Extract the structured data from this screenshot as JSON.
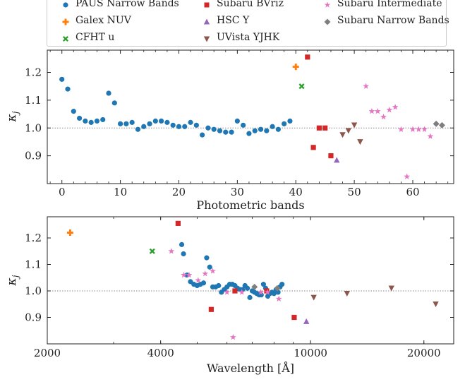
{
  "legend": [
    {
      "label": "PAUS Narrow Bands",
      "color": "#1f77b4",
      "marker": "circle"
    },
    {
      "label": "Subaru BVriz",
      "color": "#d62728",
      "marker": "square"
    },
    {
      "label": "Subaru Intermediate",
      "color": "#e377c2",
      "marker": "star"
    },
    {
      "label": "Galex NUV",
      "color": "#ff7f0e",
      "marker": "plus"
    },
    {
      "label": "HSC Y",
      "color": "#9467bd",
      "marker": "triangle-up"
    },
    {
      "label": "Subaru Narrow Bands",
      "color": "#7f7f7f",
      "marker": "diamond"
    },
    {
      "label": "CFHT u",
      "color": "#2ca02c",
      "marker": "x"
    },
    {
      "label": "UVista YJHK",
      "color": "#8c564b",
      "marker": "triangle-down"
    }
  ],
  "chart_data": [
    {
      "type": "scatter",
      "xlabel": "Photometric bands",
      "ylabel": "κ_j",
      "xlim": [
        -2.5,
        67
      ],
      "ylim": [
        0.8,
        1.28
      ],
      "xticks": [
        0,
        10,
        20,
        30,
        40,
        50,
        60
      ],
      "yticks": [
        0.9,
        1.0,
        1.1,
        1.2
      ],
      "reference_line": 1.0,
      "series": [
        {
          "name": "PAUS Narrow Bands",
          "points": [
            [
              0,
              1.175
            ],
            [
              1,
              1.14
            ],
            [
              2,
              1.06
            ],
            [
              3,
              1.035
            ],
            [
              4,
              1.025
            ],
            [
              5,
              1.02
            ],
            [
              6,
              1.025
            ],
            [
              7,
              1.03
            ],
            [
              8,
              1.125
            ],
            [
              9,
              1.09
            ],
            [
              10,
              1.015
            ],
            [
              11,
              1.015
            ],
            [
              12,
              1.02
            ],
            [
              13,
              0.995
            ],
            [
              14,
              1.005
            ],
            [
              15,
              1.015
            ],
            [
              16,
              1.025
            ],
            [
              17,
              1.025
            ],
            [
              18,
              1.02
            ],
            [
              19,
              1.01
            ],
            [
              20,
              1.005
            ],
            [
              21,
              1.005
            ],
            [
              22,
              1.02
            ],
            [
              23,
              1.01
            ],
            [
              24,
              0.975
            ],
            [
              25,
              1.0
            ],
            [
              26,
              0.995
            ],
            [
              27,
              0.99
            ],
            [
              28,
              0.985
            ],
            [
              29,
              0.985
            ],
            [
              30,
              1.025
            ],
            [
              31,
              1.01
            ],
            [
              32,
              0.98
            ],
            [
              33,
              0.99
            ],
            [
              34,
              0.995
            ],
            [
              35,
              0.99
            ],
            [
              36,
              1.005
            ],
            [
              37,
              0.995
            ],
            [
              38,
              1.015
            ],
            [
              39,
              1.025
            ]
          ]
        },
        {
          "name": "Galex NUV",
          "points": [
            [
              40,
              1.22
            ]
          ]
        },
        {
          "name": "CFHT u",
          "points": [
            [
              41,
              1.15
            ]
          ]
        },
        {
          "name": "Subaru BVriz",
          "points": [
            [
              42,
              1.255
            ],
            [
              43,
              0.93
            ],
            [
              44,
              1.0
            ],
            [
              45,
              1.0
            ],
            [
              46,
              0.9
            ]
          ]
        },
        {
          "name": "HSC Y",
          "points": [
            [
              47,
              0.885
            ]
          ]
        },
        {
          "name": "UVista YJHK",
          "points": [
            [
              48,
              0.975
            ],
            [
              49,
              0.99
            ],
            [
              50,
              1.01
            ],
            [
              51,
              0.95
            ]
          ]
        },
        {
          "name": "Subaru Intermediate",
          "points": [
            [
              52,
              1.15
            ],
            [
              53,
              1.06
            ],
            [
              54,
              1.06
            ],
            [
              55,
              1.04
            ],
            [
              56,
              1.065
            ],
            [
              57,
              1.075
            ],
            [
              58,
              0.995
            ],
            [
              59,
              0.825
            ],
            [
              60,
              0.995
            ],
            [
              61,
              0.995
            ],
            [
              62,
              0.995
            ],
            [
              63,
              0.97
            ]
          ]
        },
        {
          "name": "Subaru Narrow Bands",
          "points": [
            [
              64,
              1.015
            ],
            [
              65,
              1.01
            ]
          ]
        }
      ]
    },
    {
      "type": "scatter",
      "xlabel": "Wavelength [Å]",
      "ylabel": "κ_j",
      "xscale": "log",
      "xlim": [
        2000,
        24000
      ],
      "ylim": [
        0.8,
        1.28
      ],
      "xticks": [
        2000,
        4000,
        10000,
        20000
      ],
      "yticks": [
        0.9,
        1.0,
        1.1,
        1.2
      ],
      "reference_line": 1.0,
      "series": [
        {
          "name": "PAUS Narrow Bands",
          "points": [
            [
              4550,
              1.175
            ],
            [
              4600,
              1.14
            ],
            [
              4700,
              1.06
            ],
            [
              4800,
              1.035
            ],
            [
              4900,
              1.025
            ],
            [
              5000,
              1.02
            ],
            [
              5100,
              1.025
            ],
            [
              5200,
              1.03
            ],
            [
              5300,
              1.125
            ],
            [
              5400,
              1.09
            ],
            [
              5500,
              1.015
            ],
            [
              5600,
              1.015
            ],
            [
              5700,
              1.02
            ],
            [
              5800,
              0.995
            ],
            [
              5900,
              1.005
            ],
            [
              6000,
              1.015
            ],
            [
              6100,
              1.025
            ],
            [
              6200,
              1.025
            ],
            [
              6300,
              1.02
            ],
            [
              6400,
              1.01
            ],
            [
              6500,
              1.005
            ],
            [
              6600,
              1.005
            ],
            [
              6700,
              1.02
            ],
            [
              6800,
              1.01
            ],
            [
              6900,
              0.975
            ],
            [
              7000,
              1.0
            ],
            [
              7100,
              0.995
            ],
            [
              7200,
              0.99
            ],
            [
              7300,
              0.985
            ],
            [
              7400,
              0.985
            ],
            [
              7500,
              1.025
            ],
            [
              7600,
              1.01
            ],
            [
              7700,
              0.98
            ],
            [
              7800,
              0.99
            ],
            [
              7900,
              0.995
            ],
            [
              8000,
              0.99
            ],
            [
              8100,
              1.005
            ],
            [
              8200,
              0.995
            ],
            [
              8300,
              1.015
            ],
            [
              8400,
              1.025
            ]
          ]
        },
        {
          "name": "Galex NUV",
          "points": [
            [
              2300,
              1.22
            ]
          ]
        },
        {
          "name": "CFHT u",
          "points": [
            [
              3800,
              1.15
            ]
          ]
        },
        {
          "name": "Subaru BVriz",
          "points": [
            [
              4450,
              1.255
            ],
            [
              5450,
              0.93
            ],
            [
              6300,
              1.0
            ],
            [
              7650,
              1.0
            ],
            [
              9050,
              0.9
            ]
          ]
        },
        {
          "name": "HSC Y",
          "points": [
            [
              9750,
              0.885
            ]
          ]
        },
        {
          "name": "UVista YJHK",
          "points": [
            [
              10200,
              0.975
            ],
            [
              12500,
              0.99
            ],
            [
              16400,
              1.01
            ],
            [
              21500,
              0.95
            ]
          ]
        },
        {
          "name": "Subaru Intermediate",
          "points": [
            [
              4270,
              1.15
            ],
            [
              4610,
              1.06
            ],
            [
              4760,
              1.06
            ],
            [
              5030,
              1.04
            ],
            [
              5250,
              1.065
            ],
            [
              5500,
              1.075
            ],
            [
              6000,
              0.995
            ],
            [
              6230,
              0.825
            ],
            [
              6570,
              0.995
            ],
            [
              7380,
              0.995
            ],
            [
              7690,
              0.995
            ],
            [
              8240,
              0.97
            ]
          ]
        },
        {
          "name": "Subaru Narrow Bands",
          "points": [
            [
              7100,
              1.015
            ],
            [
              8160,
              1.01
            ]
          ]
        }
      ]
    }
  ]
}
